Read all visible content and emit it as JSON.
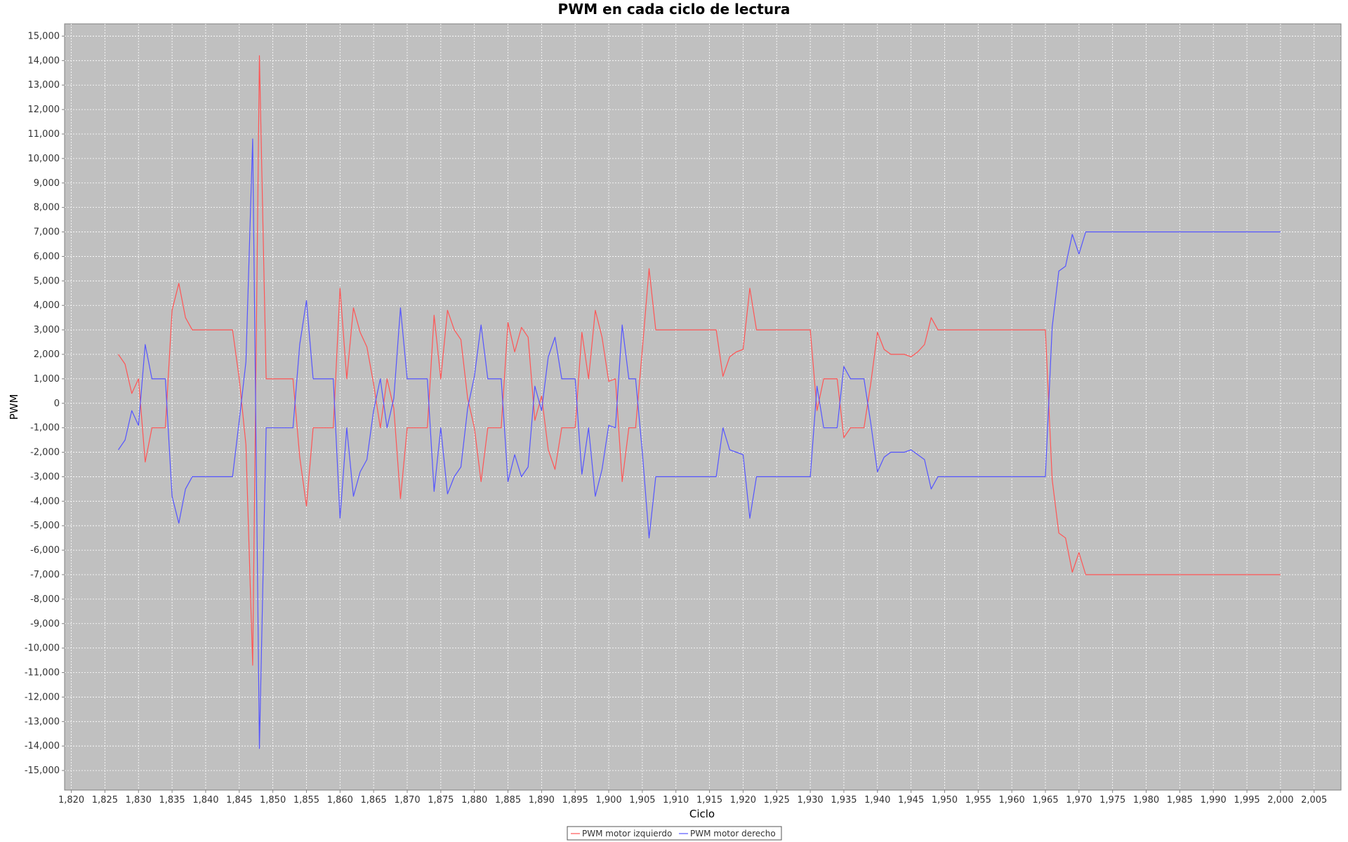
{
  "chart_data": {
    "type": "line",
    "title": "PWM en cada ciclo de lectura",
    "xlabel": "Ciclo",
    "ylabel": "PWM",
    "xlim": [
      1819,
      2009
    ],
    "ylim": [
      -15800,
      15500
    ],
    "x_ticks": [
      1820,
      1825,
      1830,
      1835,
      1840,
      1845,
      1850,
      1855,
      1860,
      1865,
      1870,
      1875,
      1880,
      1885,
      1890,
      1895,
      1900,
      1905,
      1910,
      1915,
      1920,
      1925,
      1930,
      1935,
      1940,
      1945,
      1950,
      1955,
      1960,
      1965,
      1970,
      1975,
      1980,
      1985,
      1990,
      1995,
      2000,
      2005
    ],
    "x_tick_labels": [
      "1,820",
      "1,825",
      "1,830",
      "1,835",
      "1,840",
      "1,845",
      "1,850",
      "1,855",
      "1,860",
      "1,865",
      "1,870",
      "1,875",
      "1,880",
      "1,885",
      "1,890",
      "1,895",
      "1,900",
      "1,905",
      "1,910",
      "1,915",
      "1,920",
      "1,925",
      "1,930",
      "1,935",
      "1,940",
      "1,945",
      "1,950",
      "1,955",
      "1,960",
      "1,965",
      "1,970",
      "1,975",
      "1,980",
      "1,985",
      "1,990",
      "1,995",
      "2,000",
      "2,005"
    ],
    "y_ticks": [
      15000,
      14000,
      13000,
      12000,
      11000,
      10000,
      9000,
      8000,
      7000,
      6000,
      5000,
      4000,
      3000,
      2000,
      1000,
      0,
      -1000,
      -2000,
      -3000,
      -4000,
      -5000,
      -6000,
      -7000,
      -8000,
      -9000,
      -10000,
      -11000,
      -12000,
      -13000,
      -14000,
      -15000
    ],
    "y_tick_labels": [
      "15,000",
      "14,000",
      "13,000",
      "12,000",
      "11,000",
      "10,000",
      "9,000",
      "8,000",
      "7,000",
      "6,000",
      "5,000",
      "4,000",
      "3,000",
      "2,000",
      "1,000",
      "0",
      "-1,000",
      "-2,000",
      "-3,000",
      "-4,000",
      "-5,000",
      "-6,000",
      "-7,000",
      "-8,000",
      "-9,000",
      "-10,000",
      "-11,000",
      "-12,000",
      "-13,000",
      "-14,000",
      "-15,000"
    ],
    "grid": true,
    "legend_position": "bottom-center",
    "plot_background": "#c0c0c0",
    "series": [
      {
        "name": "PWM motor izquierdo",
        "color": "#ff5555",
        "points": [
          [
            1827,
            2000
          ],
          [
            1828,
            1600
          ],
          [
            1829,
            400
          ],
          [
            1830,
            1000
          ],
          [
            1831,
            -2400
          ],
          [
            1832,
            -1000
          ],
          [
            1833,
            -1000
          ],
          [
            1834,
            -1000
          ],
          [
            1835,
            3800
          ],
          [
            1836,
            4900
          ],
          [
            1837,
            3500
          ],
          [
            1838,
            3000
          ],
          [
            1839,
            3000
          ],
          [
            1840,
            3000
          ],
          [
            1841,
            3000
          ],
          [
            1842,
            3000
          ],
          [
            1843,
            3000
          ],
          [
            1844,
            3000
          ],
          [
            1845,
            1000
          ],
          [
            1846,
            -1700
          ],
          [
            1847,
            -10700
          ],
          [
            1848,
            14200
          ],
          [
            1849,
            1000
          ],
          [
            1850,
            1000
          ],
          [
            1851,
            1000
          ],
          [
            1852,
            1000
          ],
          [
            1853,
            1000
          ],
          [
            1854,
            -2200
          ],
          [
            1855,
            -4200
          ],
          [
            1856,
            -1000
          ],
          [
            1857,
            -1000
          ],
          [
            1858,
            -1000
          ],
          [
            1859,
            -1000
          ],
          [
            1860,
            4700
          ],
          [
            1861,
            1000
          ],
          [
            1862,
            3900
          ],
          [
            1863,
            2900
          ],
          [
            1864,
            2300
          ],
          [
            1865,
            800
          ],
          [
            1866,
            -1000
          ],
          [
            1867,
            1000
          ],
          [
            1868,
            -200
          ],
          [
            1869,
            -3900
          ],
          [
            1870,
            -1000
          ],
          [
            1871,
            -1000
          ],
          [
            1872,
            -1000
          ],
          [
            1873,
            -1000
          ],
          [
            1874,
            3600
          ],
          [
            1875,
            1000
          ],
          [
            1876,
            3800
          ],
          [
            1877,
            3000
          ],
          [
            1878,
            2600
          ],
          [
            1879,
            200
          ],
          [
            1880,
            -1000
          ],
          [
            1881,
            -3200
          ],
          [
            1882,
            -1000
          ],
          [
            1883,
            -1000
          ],
          [
            1884,
            -1000
          ],
          [
            1885,
            3300
          ],
          [
            1886,
            2100
          ],
          [
            1887,
            3100
          ],
          [
            1888,
            2700
          ],
          [
            1889,
            -700
          ],
          [
            1890,
            300
          ],
          [
            1891,
            -1900
          ],
          [
            1892,
            -2700
          ],
          [
            1893,
            -1000
          ],
          [
            1894,
            -1000
          ],
          [
            1895,
            -1000
          ],
          [
            1896,
            2900
          ],
          [
            1897,
            1000
          ],
          [
            1898,
            3800
          ],
          [
            1899,
            2700
          ],
          [
            1900,
            900
          ],
          [
            1901,
            1000
          ],
          [
            1902,
            -3200
          ],
          [
            1903,
            -1000
          ],
          [
            1904,
            -1000
          ],
          [
            1905,
            2200
          ],
          [
            1906,
            5500
          ],
          [
            1907,
            3000
          ],
          [
            1908,
            3000
          ],
          [
            1909,
            3000
          ],
          [
            1910,
            3000
          ],
          [
            1911,
            3000
          ],
          [
            1912,
            3000
          ],
          [
            1913,
            3000
          ],
          [
            1914,
            3000
          ],
          [
            1915,
            3000
          ],
          [
            1916,
            3000
          ],
          [
            1917,
            1100
          ],
          [
            1918,
            1900
          ],
          [
            1919,
            2100
          ],
          [
            1920,
            2200
          ],
          [
            1921,
            4700
          ],
          [
            1922,
            3000
          ],
          [
            1923,
            3000
          ],
          [
            1924,
            3000
          ],
          [
            1925,
            3000
          ],
          [
            1926,
            3000
          ],
          [
            1927,
            3000
          ],
          [
            1928,
            3000
          ],
          [
            1929,
            3000
          ],
          [
            1930,
            3000
          ],
          [
            1931,
            -300
          ],
          [
            1932,
            1000
          ],
          [
            1933,
            1000
          ],
          [
            1934,
            1000
          ],
          [
            1935,
            -1400
          ],
          [
            1936,
            -1000
          ],
          [
            1937,
            -1000
          ],
          [
            1938,
            -1000
          ],
          [
            1939,
            800
          ],
          [
            1940,
            2900
          ],
          [
            1941,
            2200
          ],
          [
            1942,
            2000
          ],
          [
            1943,
            2000
          ],
          [
            1944,
            2000
          ],
          [
            1945,
            1900
          ],
          [
            1946,
            2100
          ],
          [
            1947,
            2400
          ],
          [
            1948,
            3500
          ],
          [
            1949,
            3000
          ],
          [
            1950,
            3000
          ],
          [
            1955,
            3000
          ],
          [
            1960,
            3000
          ],
          [
            1965,
            3000
          ],
          [
            1966,
            -3100
          ],
          [
            1967,
            -5300
          ],
          [
            1968,
            -5500
          ],
          [
            1969,
            -6900
          ],
          [
            1970,
            -6100
          ],
          [
            1971,
            -7000
          ],
          [
            1975,
            -7000
          ],
          [
            1980,
            -7000
          ],
          [
            1985,
            -7000
          ],
          [
            1990,
            -7000
          ],
          [
            1995,
            -7000
          ],
          [
            2000,
            -7000
          ]
        ]
      },
      {
        "name": "PWM motor derecho",
        "color": "#5555ff",
        "points": [
          [
            1827,
            -1900
          ],
          [
            1828,
            -1500
          ],
          [
            1829,
            -300
          ],
          [
            1830,
            -900
          ],
          [
            1831,
            2400
          ],
          [
            1832,
            1000
          ],
          [
            1833,
            1000
          ],
          [
            1834,
            1000
          ],
          [
            1835,
            -3800
          ],
          [
            1836,
            -4900
          ],
          [
            1837,
            -3500
          ],
          [
            1838,
            -3000
          ],
          [
            1839,
            -3000
          ],
          [
            1840,
            -3000
          ],
          [
            1841,
            -3000
          ],
          [
            1842,
            -3000
          ],
          [
            1843,
            -3000
          ],
          [
            1844,
            -3000
          ],
          [
            1845,
            -700
          ],
          [
            1846,
            1700
          ],
          [
            1847,
            10800
          ],
          [
            1848,
            -14100
          ],
          [
            1849,
            -1000
          ],
          [
            1850,
            -1000
          ],
          [
            1851,
            -1000
          ],
          [
            1852,
            -1000
          ],
          [
            1853,
            -1000
          ],
          [
            1854,
            2400
          ],
          [
            1855,
            4200
          ],
          [
            1856,
            1000
          ],
          [
            1857,
            1000
          ],
          [
            1858,
            1000
          ],
          [
            1859,
            1000
          ],
          [
            1860,
            -4700
          ],
          [
            1861,
            -1000
          ],
          [
            1862,
            -3800
          ],
          [
            1863,
            -2800
          ],
          [
            1864,
            -2300
          ],
          [
            1865,
            -300
          ],
          [
            1866,
            1000
          ],
          [
            1867,
            -1000
          ],
          [
            1868,
            200
          ],
          [
            1869,
            3900
          ],
          [
            1870,
            1000
          ],
          [
            1871,
            1000
          ],
          [
            1872,
            1000
          ],
          [
            1873,
            1000
          ],
          [
            1874,
            -3600
          ],
          [
            1875,
            -1000
          ],
          [
            1876,
            -3700
          ],
          [
            1877,
            -3000
          ],
          [
            1878,
            -2600
          ],
          [
            1879,
            -200
          ],
          [
            1880,
            1100
          ],
          [
            1881,
            3200
          ],
          [
            1882,
            1000
          ],
          [
            1883,
            1000
          ],
          [
            1884,
            1000
          ],
          [
            1885,
            -3200
          ],
          [
            1886,
            -2100
          ],
          [
            1887,
            -3000
          ],
          [
            1888,
            -2600
          ],
          [
            1889,
            700
          ],
          [
            1890,
            -300
          ],
          [
            1891,
            1900
          ],
          [
            1892,
            2700
          ],
          [
            1893,
            1000
          ],
          [
            1894,
            1000
          ],
          [
            1895,
            1000
          ],
          [
            1896,
            -2900
          ],
          [
            1897,
            -1000
          ],
          [
            1898,
            -3800
          ],
          [
            1899,
            -2700
          ],
          [
            1900,
            -900
          ],
          [
            1901,
            -1000
          ],
          [
            1902,
            3200
          ],
          [
            1903,
            1000
          ],
          [
            1904,
            1000
          ],
          [
            1905,
            -2000
          ],
          [
            1906,
            -5500
          ],
          [
            1907,
            -3000
          ],
          [
            1908,
            -3000
          ],
          [
            1909,
            -3000
          ],
          [
            1910,
            -3000
          ],
          [
            1911,
            -3000
          ],
          [
            1912,
            -3000
          ],
          [
            1913,
            -3000
          ],
          [
            1914,
            -3000
          ],
          [
            1915,
            -3000
          ],
          [
            1916,
            -3000
          ],
          [
            1917,
            -1000
          ],
          [
            1918,
            -1900
          ],
          [
            1919,
            -2000
          ],
          [
            1920,
            -2100
          ],
          [
            1921,
            -4700
          ],
          [
            1922,
            -3000
          ],
          [
            1923,
            -3000
          ],
          [
            1924,
            -3000
          ],
          [
            1925,
            -3000
          ],
          [
            1926,
            -3000
          ],
          [
            1927,
            -3000
          ],
          [
            1928,
            -3000
          ],
          [
            1929,
            -3000
          ],
          [
            1930,
            -3000
          ],
          [
            1931,
            700
          ],
          [
            1932,
            -1000
          ],
          [
            1933,
            -1000
          ],
          [
            1934,
            -1000
          ],
          [
            1935,
            1500
          ],
          [
            1936,
            1000
          ],
          [
            1937,
            1000
          ],
          [
            1938,
            1000
          ],
          [
            1939,
            -800
          ],
          [
            1940,
            -2800
          ],
          [
            1941,
            -2200
          ],
          [
            1942,
            -2000
          ],
          [
            1943,
            -2000
          ],
          [
            1944,
            -2000
          ],
          [
            1945,
            -1900
          ],
          [
            1946,
            -2100
          ],
          [
            1947,
            -2300
          ],
          [
            1948,
            -3500
          ],
          [
            1949,
            -3000
          ],
          [
            1950,
            -3000
          ],
          [
            1955,
            -3000
          ],
          [
            1960,
            -3000
          ],
          [
            1965,
            -3000
          ],
          [
            1966,
            3100
          ],
          [
            1967,
            5400
          ],
          [
            1968,
            5600
          ],
          [
            1969,
            6900
          ],
          [
            1970,
            6100
          ],
          [
            1971,
            7000
          ],
          [
            1975,
            7000
          ],
          [
            1980,
            7000
          ],
          [
            1985,
            7000
          ],
          [
            1990,
            7000
          ],
          [
            1995,
            7000
          ],
          [
            2000,
            7000
          ]
        ]
      }
    ]
  }
}
